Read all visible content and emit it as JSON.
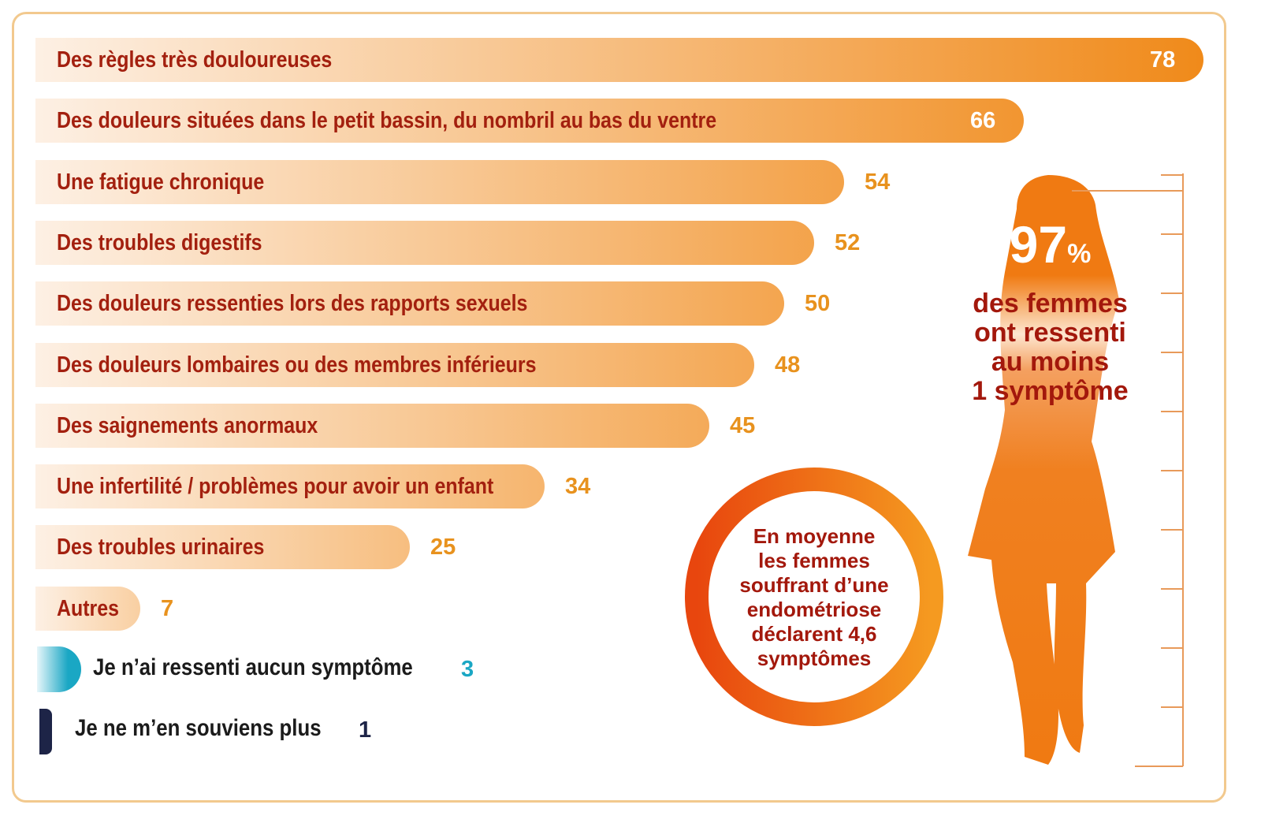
{
  "chart_data": {
    "type": "bar",
    "orientation": "horizontal",
    "unit": "%",
    "categories": [
      "Des règles très douloureuses",
      "Des douleurs situées dans le petit bassin, du nombril au bas du ventre",
      "Une fatigue chronique",
      "Des troubles digestifs",
      "Des douleurs ressenties lors des rapports sexuels",
      "Des douleurs lombaires ou des membres inférieurs",
      "Des saignements anormaux",
      "Une infertilité / problèmes pour avoir un enfant",
      "Des troubles urinaires",
      "Autres"
    ],
    "values": [
      78,
      66,
      54,
      52,
      50,
      48,
      45,
      34,
      25,
      7
    ],
    "extra": [
      {
        "label": "Je n’ai ressenti aucun symptôme",
        "value": 3,
        "color": "#1aa7c4"
      },
      {
        "label": "Je ne m’en souviens plus",
        "value": 1,
        "color": "#1d2447"
      }
    ],
    "colors": {
      "bar": "#f08a1a",
      "label": "#a3200f",
      "value": "#e8921e"
    }
  },
  "highlight": {
    "percent": "97",
    "percent_sign": "%",
    "text": [
      "des femmes",
      "ont ressenti",
      "au moins",
      "1 symptôme"
    ]
  },
  "circle": {
    "text": [
      "En moyenne",
      "les femmes",
      "souffrant d’une",
      "endométriose",
      "déclarent 4,6",
      "symptômes"
    ]
  }
}
